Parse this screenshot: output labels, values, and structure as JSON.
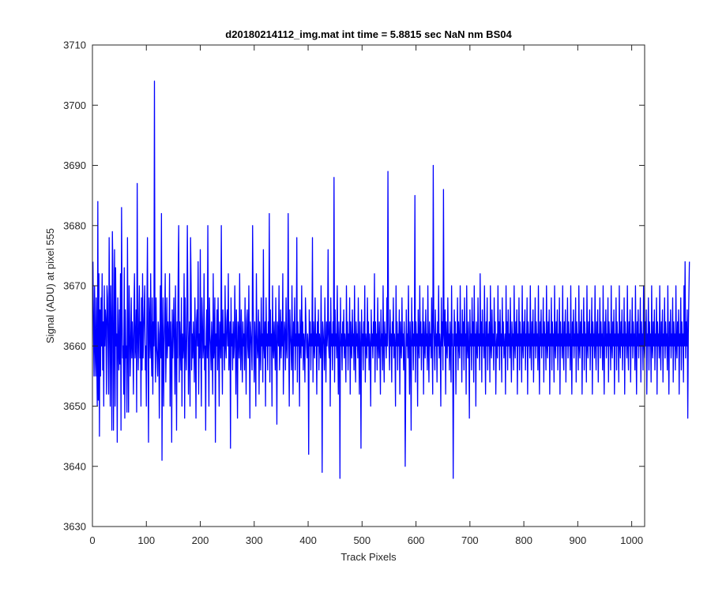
{
  "chart_data": {
    "type": "line",
    "title": "d20180214112_img.mat int time = 5.8815 sec  NaN nm BS04",
    "xlabel": "Track Pixels",
    "ylabel": "Signal (ADU) at pixel 555",
    "xlim": [
      0,
      1024
    ],
    "ylim": [
      3630,
      3710
    ],
    "xticks": [
      0,
      100,
      200,
      300,
      400,
      500,
      600,
      700,
      800,
      900,
      1000
    ],
    "yticks": [
      3630,
      3640,
      3650,
      3660,
      3670,
      3680,
      3690,
      3700,
      3710
    ],
    "grid": false,
    "legend": "none",
    "series_color": "#0000ff",
    "series": [
      {
        "name": "",
        "x_start": 1,
        "x_step": 1,
        "values": [
          3674,
          3662,
          3655,
          3670,
          3660,
          3655,
          3668,
          3658,
          3650,
          3684,
          3651,
          3672,
          3645,
          3666,
          3655,
          3668,
          3660,
          3672,
          3656,
          3664,
          3650,
          3670,
          3660,
          3666,
          3664,
          3652,
          3670,
          3668,
          3660,
          3652,
          3678,
          3664,
          3650,
          3670,
          3662,
          3646,
          3679,
          3672,
          3646,
          3660,
          3676,
          3650,
          3673,
          3660,
          3662,
          3644,
          3668,
          3660,
          3656,
          3666,
          3657,
          3672,
          3646,
          3683,
          3665,
          3658,
          3660,
          3652,
          3673,
          3648,
          3666,
          3658,
          3660,
          3649,
          3678,
          3660,
          3649,
          3670,
          3664,
          3655,
          3660,
          3668,
          3658,
          3664,
          3660,
          3652,
          3666,
          3672,
          3658,
          3660,
          3666,
          3649,
          3687,
          3662,
          3656,
          3664,
          3670,
          3658,
          3664,
          3650,
          3668,
          3656,
          3672,
          3658,
          3662,
          3666,
          3670,
          3656,
          3660,
          3650,
          3666,
          3678,
          3660,
          3644,
          3668,
          3664,
          3658,
          3672,
          3660,
          3655,
          3668,
          3652,
          3664,
          3660,
          3704,
          3662,
          3654,
          3668,
          3660,
          3658,
          3655,
          3664,
          3662,
          3648,
          3660,
          3670,
          3658,
          3682,
          3641,
          3660,
          3668,
          3650,
          3660,
          3664,
          3672,
          3654,
          3660,
          3668,
          3658,
          3664,
          3660,
          3660,
          3672,
          3650,
          3664,
          3660,
          3644,
          3666,
          3658,
          3662,
          3668,
          3660,
          3652,
          3670,
          3660,
          3646,
          3664,
          3658,
          3672,
          3680,
          3654,
          3664,
          3660,
          3656,
          3668,
          3650,
          3662,
          3658,
          3660,
          3672,
          3648,
          3668,
          3660,
          3656,
          3662,
          3680,
          3668,
          3652,
          3660,
          3664,
          3650,
          3678,
          3670,
          3656,
          3662,
          3658,
          3664,
          3660,
          3654,
          3668,
          3660,
          3648,
          3664,
          3666,
          3660,
          3674,
          3652,
          3662,
          3658,
          3676,
          3660,
          3650,
          3668,
          3664,
          3658,
          3660,
          3672,
          3656,
          3660,
          3646,
          3662,
          3666,
          3658,
          3680,
          3660,
          3650,
          3668,
          3662,
          3660,
          3656,
          3664,
          3660,
          3652,
          3672,
          3658,
          3660,
          3668,
          3644,
          3662,
          3660,
          3666,
          3656,
          3668,
          3660,
          3650,
          3664,
          3662,
          3658,
          3680,
          3660,
          3652,
          3666,
          3660,
          3662,
          3656,
          3670,
          3660,
          3658,
          3664,
          3666,
          3660,
          3672,
          3656,
          3660,
          3664,
          3643,
          3668,
          3660,
          3662,
          3656,
          3664,
          3658,
          3660,
          3670,
          3662,
          3652,
          3666,
          3660,
          3648,
          3664,
          3662,
          3658,
          3672,
          3660,
          3656,
          3666,
          3660,
          3654,
          3664,
          3660,
          3662,
          3656,
          3668,
          3660,
          3652,
          3664,
          3666,
          3660,
          3658,
          3670,
          3660,
          3648,
          3664,
          3662,
          3660,
          3656,
          3680,
          3668,
          3660,
          3654,
          3664,
          3660,
          3650,
          3672,
          3662,
          3658,
          3660,
          3666,
          3652,
          3664,
          3660,
          3656,
          3668,
          3660,
          3662,
          3654,
          3676,
          3660,
          3658,
          3664,
          3650,
          3668,
          3660,
          3662,
          3656,
          3664,
          3660,
          3682,
          3654,
          3666,
          3660,
          3662,
          3650,
          3670,
          3660,
          3658,
          3664,
          3660,
          3656,
          3668,
          3660,
          3647,
          3664,
          3662,
          3660,
          3670,
          3656,
          3660,
          3666,
          3658,
          3664,
          3660,
          3672,
          3652,
          3660,
          3664,
          3662,
          3656,
          3668,
          3660,
          3658,
          3664,
          3682,
          3660,
          3650,
          3666,
          3662,
          3660,
          3656,
          3670,
          3660,
          3652,
          3664,
          3660,
          3668,
          3656,
          3662,
          3660,
          3678,
          3654,
          3664,
          3660,
          3662,
          3650,
          3666,
          3660,
          3658,
          3670,
          3660,
          3664,
          3656,
          3662,
          3660,
          3654,
          3668,
          3664,
          3660,
          3658,
          3662,
          3660,
          3642,
          3666,
          3660,
          3664,
          3656,
          3662,
          3660,
          3678,
          3654,
          3664,
          3660,
          3658,
          3668,
          3660,
          3662,
          3652,
          3664,
          3660,
          3666,
          3656,
          3662,
          3660,
          3658,
          3670,
          3660,
          3639,
          3664,
          3662,
          3660,
          3656,
          3668,
          3660,
          3654,
          3664,
          3660,
          3662,
          3676,
          3660,
          3658,
          3664,
          3650,
          3668,
          3660,
          3662,
          3656,
          3664,
          3660,
          3688,
          3654,
          3666,
          3660,
          3662,
          3658,
          3670,
          3660,
          3652,
          3664,
          3660,
          3638,
          3668,
          3660,
          3662,
          3656,
          3664,
          3660,
          3666,
          3658,
          3662,
          3660,
          3654,
          3670,
          3660,
          3664,
          3656,
          3662,
          3660,
          3668,
          3652,
          3664,
          3660,
          3658,
          3666,
          3660,
          3662,
          3656,
          3670,
          3660,
          3654,
          3664,
          3660,
          3662,
          3658,
          3668,
          3660,
          3652,
          3664,
          3660,
          3643,
          3666,
          3660,
          3662,
          3656,
          3664,
          3660,
          3670,
          3654,
          3662,
          3660,
          3658,
          3668,
          3660,
          3664,
          3656,
          3662,
          3660,
          3650,
          3666,
          3660,
          3662,
          3658,
          3664,
          3660,
          3672,
          3654,
          3664,
          3660,
          3662,
          3656,
          3668,
          3660,
          3658,
          3664,
          3660,
          3652,
          3666,
          3660,
          3662,
          3656,
          3670,
          3660,
          3654,
          3664,
          3660,
          3662,
          3658,
          3668,
          3660,
          3689,
          3664,
          3660,
          3656,
          3666,
          3660,
          3662,
          3654,
          3664,
          3660,
          3668,
          3658,
          3662,
          3660,
          3650,
          3670,
          3660,
          3664,
          3656,
          3662,
          3660,
          3666,
          3652,
          3664,
          3660,
          3658,
          3668,
          3660,
          3662,
          3656,
          3664,
          3660,
          3640,
          3654,
          3666,
          3660,
          3662,
          3658,
          3670,
          3660,
          3652,
          3664,
          3660,
          3646,
          3668,
          3660,
          3664,
          3656,
          3662,
          3660,
          3685,
          3654,
          3664,
          3660,
          3662,
          3650,
          3666,
          3660,
          3658,
          3670,
          3660,
          3664,
          3656,
          3662,
          3660,
          3668,
          3652,
          3664,
          3660,
          3658,
          3666,
          3660,
          3662,
          3656,
          3670,
          3660,
          3654,
          3664,
          3660,
          3662,
          3658,
          3668,
          3660,
          3652,
          3690,
          3664,
          3660,
          3656,
          3666,
          3660,
          3662,
          3654,
          3664,
          3660,
          3670,
          3658,
          3662,
          3660,
          3650,
          3668,
          3660,
          3664,
          3656,
          3686,
          3662,
          3660,
          3666,
          3652,
          3664,
          3660,
          3658,
          3668,
          3660,
          3662,
          3656,
          3664,
          3660,
          3654,
          3670,
          3660,
          3662,
          3638,
          3658,
          3666,
          3660,
          3664,
          3652,
          3662,
          3660,
          3668,
          3656,
          3664,
          3660,
          3658,
          3670,
          3660,
          3662,
          3654,
          3666,
          3660,
          3664,
          3656,
          3668,
          3660,
          3662,
          3652,
          3670,
          3660,
          3658,
          3664,
          3660,
          3648,
          3666,
          3660,
          3662,
          3656,
          3668,
          3660,
          3664,
          3654,
          3670,
          3660,
          3662,
          3650,
          3664,
          3660,
          3658,
          3668,
          3660,
          3662,
          3656,
          3672,
          3660,
          3664,
          3654,
          3666,
          3660,
          3662,
          3658,
          3670,
          3660,
          3652,
          3664,
          3660,
          3668,
          3656,
          3662,
          3660,
          3664,
          3654,
          3670,
          3660,
          3658,
          3666,
          3660,
          3662,
          3656,
          3668,
          3660,
          3664,
          3652,
          3660,
          3662,
          3658,
          3670,
          3660,
          3664,
          3656,
          3666,
          3660,
          3662,
          3654,
          3668,
          3660,
          3664,
          3658,
          3660,
          3662,
          3652,
          3670,
          3660,
          3664,
          3656,
          3666,
          3660,
          3662,
          3658,
          3668,
          3660,
          3654,
          3664,
          3660,
          3662,
          3656,
          3670,
          3660,
          3658,
          3664,
          3660,
          3666,
          3652,
          3662,
          3660,
          3668,
          3656,
          3664,
          3660,
          3662,
          3654,
          3670,
          3660,
          3658,
          3664,
          3660,
          3666,
          3656,
          3662,
          3660,
          3668,
          3652,
          3664,
          3660,
          3662,
          3658,
          3670,
          3660,
          3656,
          3664,
          3660,
          3666,
          3654,
          3662,
          3660,
          3668,
          3658,
          3664,
          3660,
          3662,
          3656,
          3670,
          3660,
          3652,
          3664,
          3660,
          3666,
          3658,
          3662,
          3660,
          3668,
          3654,
          3664,
          3660,
          3662,
          3656,
          3670,
          3660,
          3658,
          3664,
          3660,
          3666,
          3652,
          3662,
          3660,
          3668,
          3656,
          3664,
          3660,
          3662,
          3654,
          3670,
          3660,
          3658,
          3664,
          3660,
          3666,
          3656,
          3662,
          3660,
          3668,
          3652,
          3664,
          3660,
          3662,
          3658,
          3670,
          3660,
          3656,
          3664,
          3660,
          3666,
          3654,
          3662,
          3660,
          3668,
          3658,
          3664,
          3660,
          3662,
          3656,
          3670,
          3660,
          3652,
          3664,
          3660,
          3666,
          3658,
          3662,
          3660,
          3668,
          3654,
          3664,
          3660,
          3662,
          3656,
          3670,
          3660,
          3658,
          3664,
          3660,
          3666,
          3652,
          3662,
          3660,
          3668,
          3656,
          3664,
          3660,
          3662,
          3654,
          3670,
          3660,
          3658,
          3664,
          3660,
          3666,
          3656,
          3662,
          3660,
          3668,
          3652,
          3664,
          3660,
          3662,
          3658,
          3670,
          3660,
          3656,
          3664,
          3660,
          3666,
          3654,
          3662,
          3660,
          3668,
          3658,
          3664,
          3660,
          3662,
          3656,
          3670,
          3660,
          3652,
          3664,
          3660,
          3666,
          3658,
          3662,
          3660,
          3668,
          3654,
          3664,
          3660,
          3662,
          3656,
          3670,
          3660,
          3658,
          3664,
          3660,
          3666,
          3652,
          3662,
          3660,
          3668,
          3656,
          3664,
          3660,
          3662,
          3654,
          3670,
          3660,
          3658,
          3664,
          3660,
          3666,
          3656,
          3662,
          3660,
          3668,
          3652,
          3664,
          3660,
          3662,
          3658,
          3670,
          3660,
          3656,
          3664,
          3660,
          3666,
          3654,
          3662,
          3660,
          3668,
          3658,
          3664,
          3660,
          3662,
          3656,
          3670,
          3660,
          3652,
          3664,
          3660,
          3666,
          3658,
          3662,
          3660,
          3668,
          3654,
          3664,
          3660,
          3662,
          3656,
          3670,
          3660,
          3658,
          3664,
          3660,
          3666,
          3652,
          3662,
          3660,
          3668,
          3656,
          3664,
          3660,
          3662,
          3654,
          3670,
          3660,
          3658,
          3664,
          3660,
          3666,
          3656,
          3662,
          3660,
          3668,
          3652,
          3664,
          3660,
          3662,
          3658,
          3670,
          3660,
          3656,
          3664,
          3660,
          3666,
          3654,
          3662,
          3660,
          3668,
          3658,
          3664,
          3660,
          3662,
          3656,
          3670,
          3660,
          3652,
          3664,
          3660,
          3666,
          3658,
          3662,
          3660,
          3668,
          3654,
          3664,
          3660,
          3662,
          3656,
          3670,
          3660,
          3658,
          3664,
          3660,
          3666,
          3652,
          3662,
          3660,
          3668,
          3656,
          3664,
          3660,
          3662,
          3654,
          3670,
          3660,
          3674,
          3658,
          3664,
          3660,
          3666,
          3648,
          3662,
          3668,
          3674
        ]
      }
    ]
  }
}
